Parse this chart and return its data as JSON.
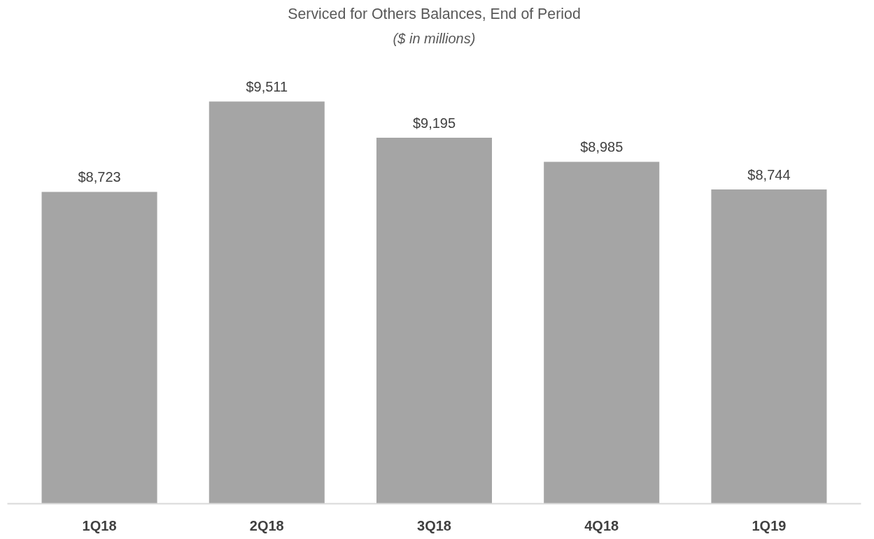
{
  "chart_data": {
    "type": "bar",
    "title": "Serviced for Others Balances, End of Period",
    "subtitle": "($ in millions)",
    "categories": [
      "1Q18",
      "2Q18",
      "3Q18",
      "4Q18",
      "1Q19"
    ],
    "values": [
      8723,
      9511,
      9195,
      8985,
      8744
    ],
    "value_labels": [
      "$8,723",
      "$9,511",
      "$9,195",
      "$8,985",
      "$8,744"
    ],
    "color": "#a5a5a5",
    "ylim": [
      6000,
      9511
    ],
    "tick_labels": "x",
    "grid": false
  }
}
